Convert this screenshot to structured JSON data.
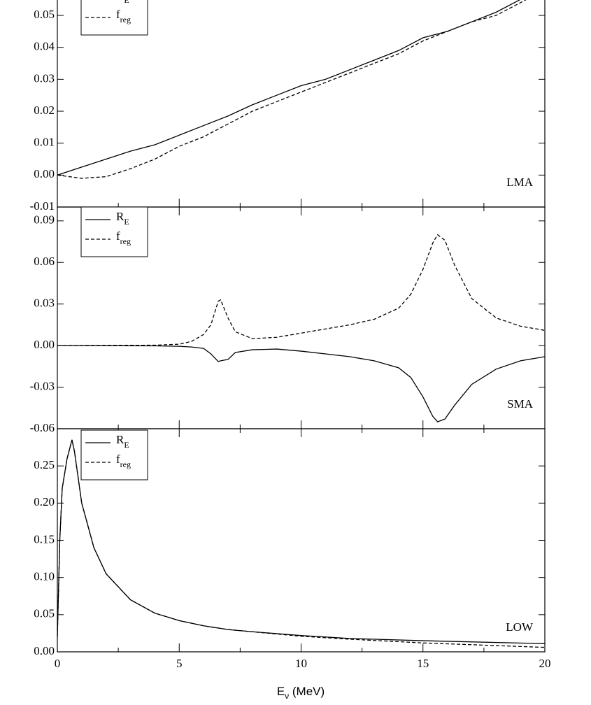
{
  "chart_data": [
    {
      "type": "line",
      "label": "LMA",
      "x": [
        0,
        1,
        2,
        3,
        4,
        5,
        6,
        7,
        8,
        9,
        10,
        11,
        12,
        13,
        14,
        15,
        16,
        17,
        18,
        19,
        20
      ],
      "series": [
        {
          "name": "R",
          "subscript": "E",
          "color": "#000000",
          "dash": false,
          "values": [
            0,
            0.0025,
            0.005,
            0.0075,
            0.0095,
            0.0125,
            0.0155,
            0.0185,
            0.022,
            0.025,
            0.028,
            0.03,
            0.033,
            0.036,
            0.039,
            0.043,
            0.045,
            0.048,
            0.051,
            0.055,
            0.058
          ]
        },
        {
          "name": "f",
          "subscript": "reg",
          "color": "#000000",
          "dash": true,
          "values": [
            0,
            -0.001,
            -0.0005,
            0.002,
            0.005,
            0.009,
            0.012,
            0.016,
            0.02,
            0.023,
            0.026,
            0.029,
            0.032,
            0.035,
            0.038,
            0.042,
            0.045,
            0.048,
            0.05,
            0.054,
            0.058
          ]
        }
      ],
      "xlim": [
        0,
        20
      ],
      "xticks": [
        0,
        5,
        10,
        15,
        20
      ],
      "ylim": [
        -0.01,
        0.06
      ],
      "yticks": [
        -0.01,
        {
          "value": 0,
          "label": "0.00"
        },
        0.01,
        0.02,
        0.03,
        0.04,
        0.05
      ]
    },
    {
      "type": "line",
      "label": "SMA",
      "x": [
        0,
        4,
        5,
        5.5,
        6,
        6.3,
        6.6,
        6.7,
        7,
        7.3,
        8,
        9,
        10,
        11,
        12,
        13,
        14,
        14.5,
        15,
        15.4,
        15.6,
        15.9,
        16.3,
        17,
        18,
        19,
        20
      ],
      "series": [
        {
          "name": "R",
          "subscript": "E",
          "color": "#000000",
          "dash": false,
          "values": [
            0,
            -0.0002,
            -0.0005,
            -0.001,
            -0.002,
            -0.006,
            -0.0115,
            -0.011,
            -0.01,
            -0.005,
            -0.003,
            -0.0025,
            -0.004,
            -0.006,
            -0.008,
            -0.011,
            -0.016,
            -0.023,
            -0.037,
            -0.051,
            -0.055,
            -0.053,
            -0.043,
            -0.028,
            -0.017,
            -0.011,
            -0.008
          ]
        },
        {
          "name": "f",
          "subscript": "reg",
          "color": "#000000",
          "dash": true,
          "values": [
            0,
            0.0003,
            0.001,
            0.003,
            0.008,
            0.015,
            0.032,
            0.033,
            0.02,
            0.01,
            0.005,
            0.006,
            0.009,
            0.012,
            0.015,
            0.019,
            0.027,
            0.037,
            0.055,
            0.074,
            0.08,
            0.076,
            0.058,
            0.034,
            0.02,
            0.014,
            0.011
          ]
        }
      ],
      "xlim": [
        0,
        20
      ],
      "xticks": [
        0,
        5,
        10,
        15,
        20
      ],
      "ylim": [
        -0.06,
        0.1
      ],
      "yticks": [
        -0.06,
        -0.03,
        {
          "value": 0,
          "label": "0.00"
        },
        0.03,
        0.06,
        0.09
      ]
    },
    {
      "type": "line",
      "label": "LOW",
      "x": [
        0,
        0.1,
        0.2,
        0.4,
        0.6,
        0.7,
        1,
        1.5,
        2,
        3,
        4,
        5,
        6,
        7,
        8,
        10,
        12,
        15,
        20
      ],
      "series": [
        {
          "name": "R",
          "subscript": "E",
          "color": "#000000",
          "dash": false,
          "values": [
            0.02,
            0.15,
            0.22,
            0.26,
            0.285,
            0.27,
            0.2,
            0.14,
            0.105,
            0.07,
            0.052,
            0.042,
            0.035,
            0.03,
            0.027,
            0.022,
            0.018,
            0.015,
            0.011
          ]
        },
        {
          "name": "f",
          "subscript": "reg",
          "color": "#000000",
          "dash": true,
          "values": [
            0.02,
            0.15,
            0.22,
            0.26,
            0.285,
            0.27,
            0.2,
            0.14,
            0.105,
            0.07,
            0.052,
            0.042,
            0.035,
            0.03,
            0.027,
            0.021,
            0.017,
            0.012,
            0.006
          ]
        }
      ],
      "xlim": [
        0,
        20
      ],
      "xticks": [
        0,
        5,
        10,
        15,
        20
      ],
      "xlabel": {
        "main": "E",
        "sub": "ν",
        "rest": " (MeV)"
      },
      "ylim": [
        0,
        0.3
      ],
      "yticks": [
        {
          "value": 0,
          "label": "0.00"
        },
        0.05,
        {
          "value": 0.1,
          "label": "0.10"
        },
        0.15,
        {
          "value": 0.2,
          "label": "0.20"
        },
        0.25
      ]
    }
  ]
}
